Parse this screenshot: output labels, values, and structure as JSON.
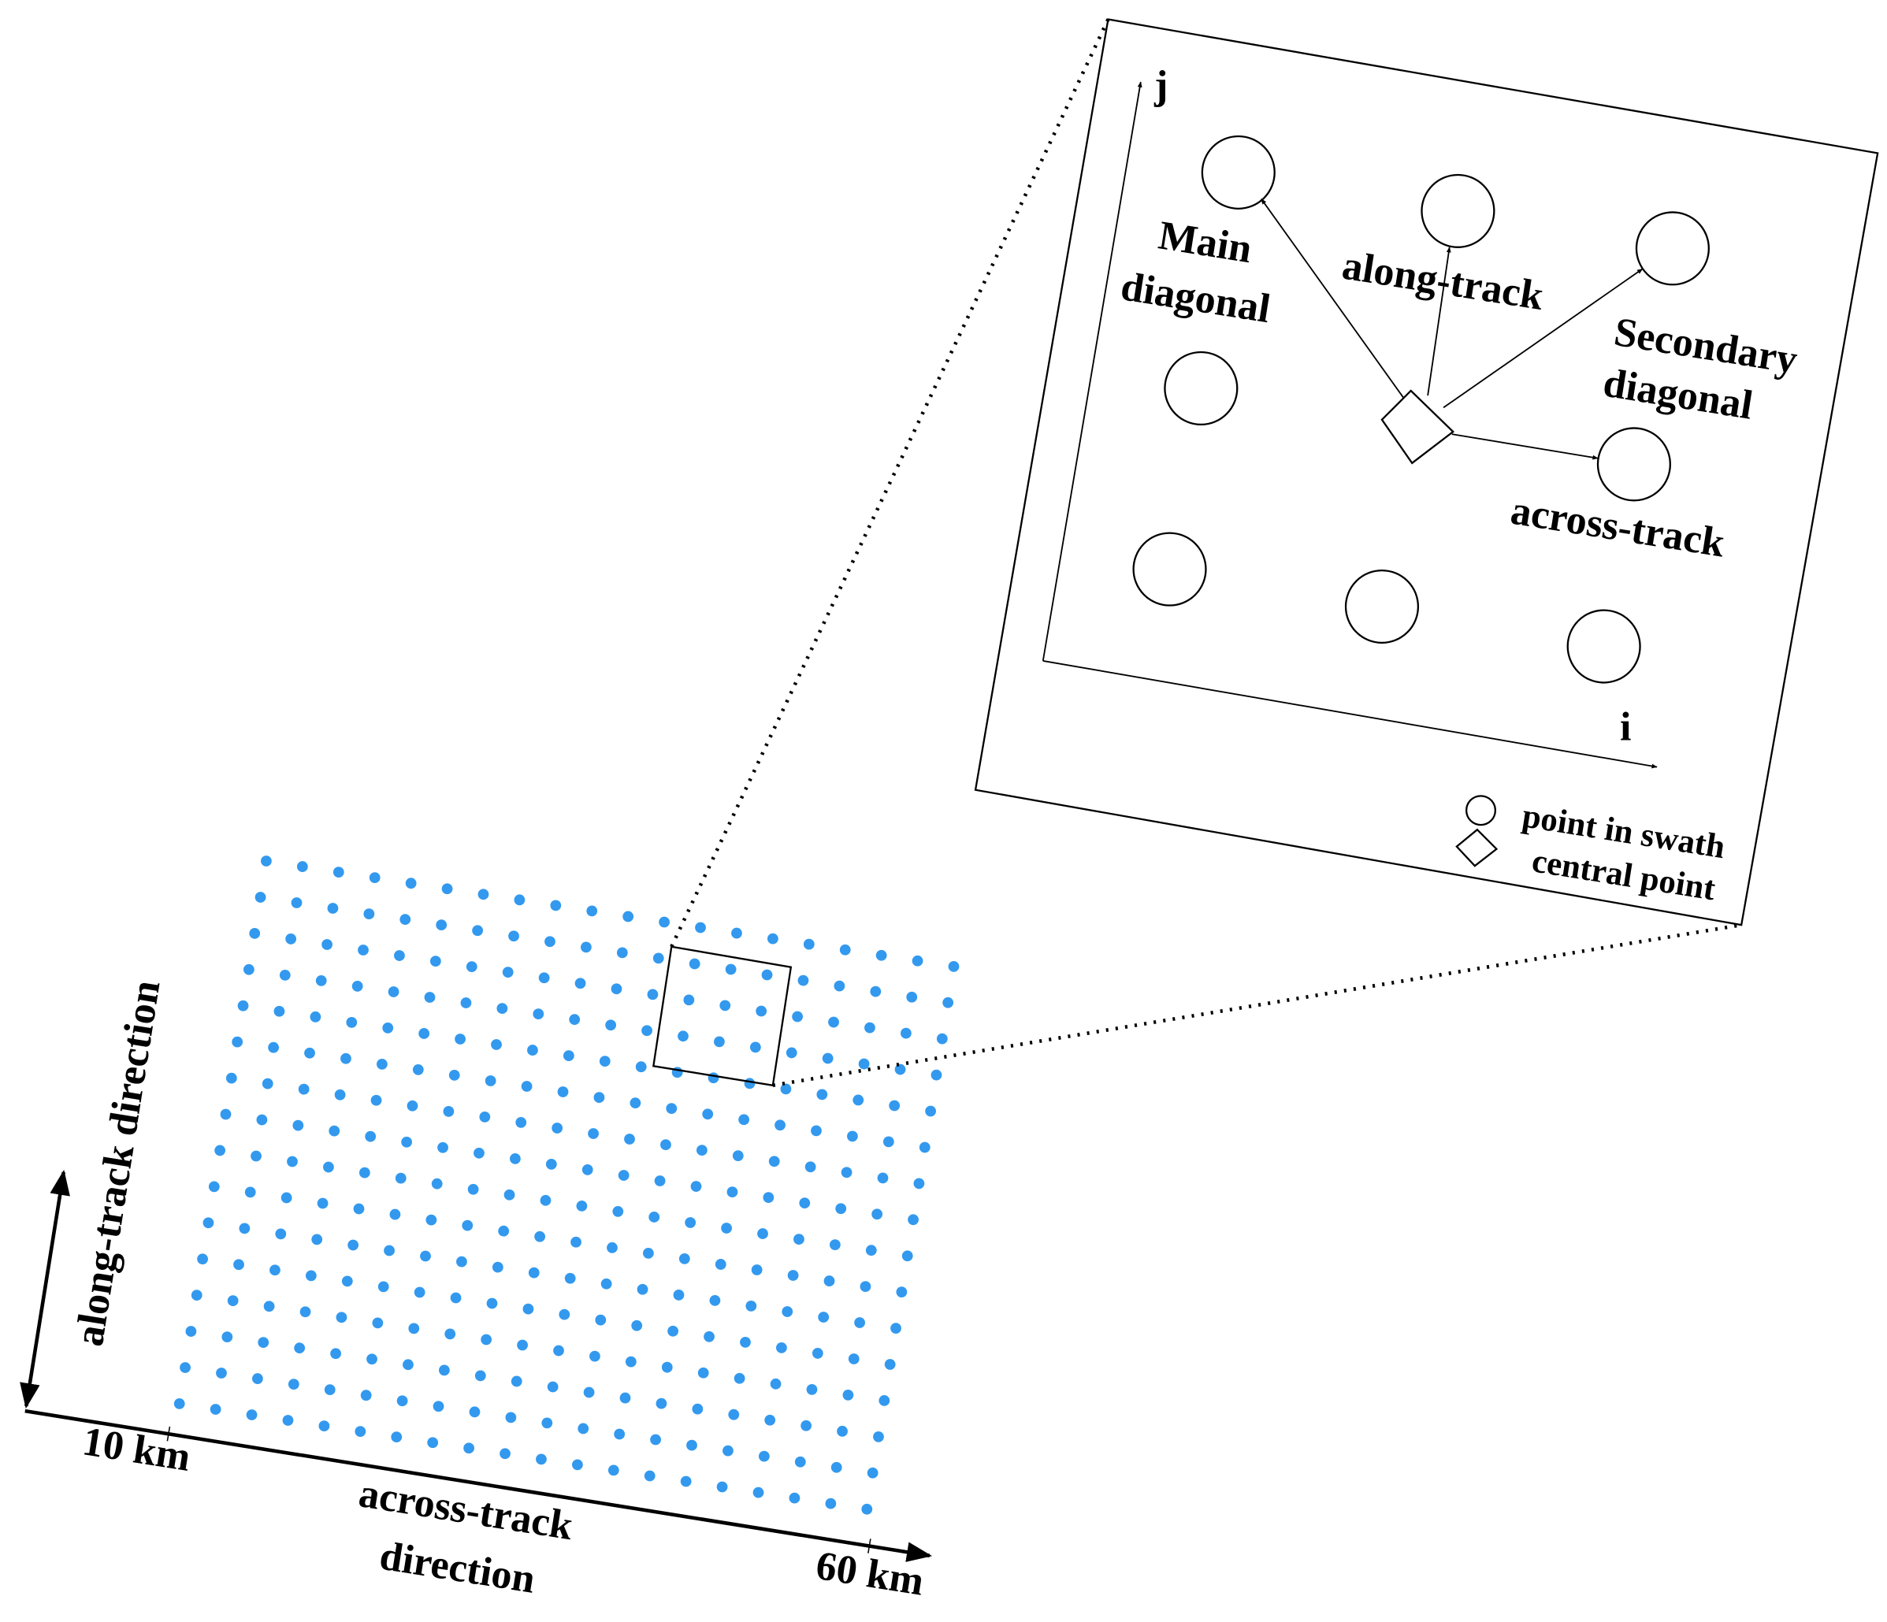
{
  "main": {
    "along_track_label": "along-track direction",
    "across_track_label": [
      "across-track",
      "direction"
    ],
    "km_start": "10 km",
    "km_end": "60 km"
  },
  "inset": {
    "j_axis": "j",
    "i_axis": "i",
    "main_diagonal": [
      "Main",
      "diagonal"
    ],
    "along_track": "along-track",
    "secondary_diagonal": [
      "Secondary",
      "diagonal"
    ],
    "across_track": "across-track"
  },
  "legend": {
    "point": "point in swath",
    "central": "central point"
  }
}
